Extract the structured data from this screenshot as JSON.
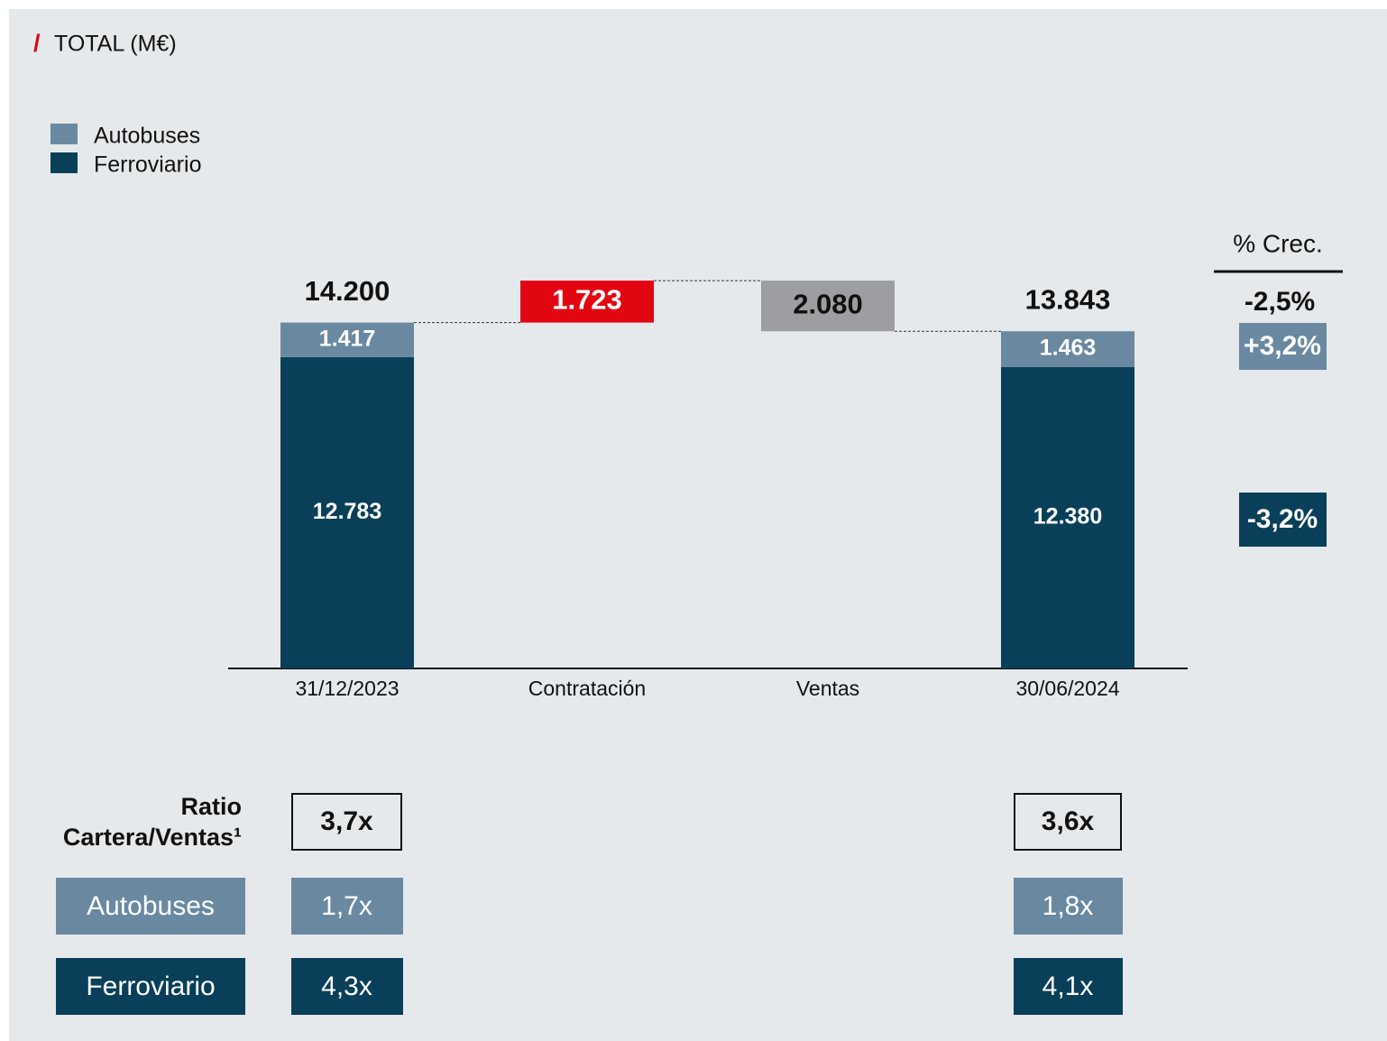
{
  "chart_data": {
    "type": "waterfall",
    "title": "TOTAL (M€)",
    "categories": [
      "31/12/2023",
      "Contratación",
      "Ventas",
      "30/06/2024"
    ],
    "series": [
      {
        "name": "Autobuses",
        "color": "#6a89a1",
        "values": [
          1417,
          null,
          null,
          1463
        ],
        "value_labels": [
          "1.417",
          null,
          null,
          "1.463"
        ]
      },
      {
        "name": "Ferroviario",
        "color": "#0a3f59",
        "values": [
          12783,
          null,
          null,
          12380
        ],
        "value_labels": [
          "12.783",
          null,
          null,
          "12.380"
        ]
      }
    ],
    "totals": {
      "values": [
        14200,
        null,
        null,
        13843
      ],
      "value_labels": [
        "14.200",
        null,
        null,
        "13.843"
      ]
    },
    "changes": {
      "values": [
        null,
        1723,
        -2080,
        null
      ],
      "value_labels": [
        null,
        "1.723",
        "2.080",
        null
      ],
      "colors": [
        null,
        "#e20613",
        "#9c9ea1",
        null
      ]
    },
    "ylim": [
      0,
      16000
    ],
    "legend": "top-left"
  },
  "growth": {
    "title": "% Crec.",
    "total": "-2,5%",
    "series": [
      "+3,2%",
      "-3,2%"
    ]
  },
  "ratios": {
    "title": [
      "Ratio",
      "Cartera/Ventas¹"
    ],
    "total": [
      "3,7x",
      "3,6x"
    ],
    "rows": [
      {
        "name": "Autobuses",
        "values": [
          "1,7x",
          "1,8x"
        ]
      },
      {
        "name": "Ferroviario",
        "values": [
          "4,3x",
          "4,1x"
        ]
      }
    ]
  }
}
